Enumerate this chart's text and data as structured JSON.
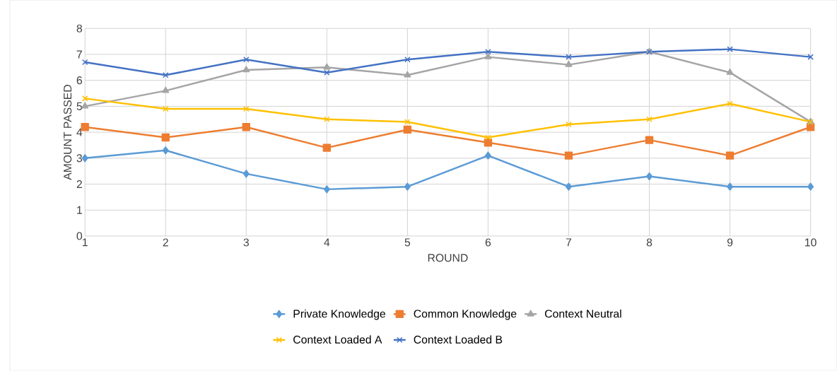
{
  "chart_data": {
    "type": "line",
    "xlabel": "ROUND",
    "ylabel": "AMOUNT PASSED",
    "x": [
      1,
      2,
      3,
      4,
      5,
      6,
      7,
      8,
      9,
      10
    ],
    "xlim": [
      1,
      10
    ],
    "xticks": [
      1,
      2,
      3,
      4,
      5,
      6,
      7,
      8,
      9,
      10
    ],
    "ylim": [
      0,
      8
    ],
    "yticks": [
      0,
      1,
      2,
      3,
      4,
      5,
      6,
      7,
      8
    ],
    "grid": true,
    "legend": "bottom",
    "line_style": "solid",
    "series": [
      {
        "name": "Private Knowledge",
        "color": "#5b9bd5",
        "marker": "diamond",
        "values": [
          3.0,
          3.3,
          2.4,
          1.8,
          1.9,
          3.1,
          1.9,
          2.3,
          1.9,
          1.9
        ]
      },
      {
        "name": "Common Knowledge",
        "color": "#ed7d31",
        "marker": "square",
        "values": [
          4.2,
          3.8,
          4.2,
          3.4,
          4.1,
          3.6,
          3.1,
          3.7,
          3.1,
          4.2
        ]
      },
      {
        "name": "Context Neutral",
        "color": "#a5a5a5",
        "marker": "triangle",
        "values": [
          5.0,
          5.6,
          6.4,
          6.5,
          6.2,
          6.9,
          6.6,
          7.1,
          6.3,
          4.4
        ]
      },
      {
        "name": "Context Loaded A",
        "color": "#ffc000",
        "marker": "cross",
        "values": [
          5.3,
          4.9,
          4.9,
          4.5,
          4.4,
          3.8,
          4.3,
          4.5,
          5.1,
          4.4
        ]
      },
      {
        "name": "Context Loaded B",
        "color": "#4472c4",
        "marker": "cross",
        "values": [
          6.7,
          6.2,
          6.8,
          6.3,
          6.8,
          7.1,
          6.9,
          7.1,
          7.2,
          6.9
        ]
      }
    ]
  }
}
